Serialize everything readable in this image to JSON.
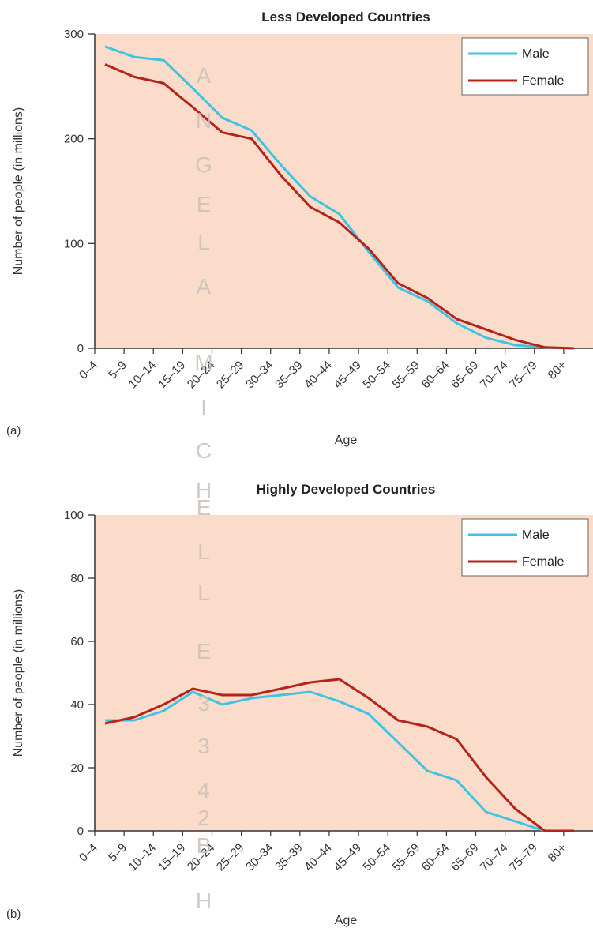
{
  "chart_data": [
    {
      "type": "line",
      "panel_label": "(a)",
      "title": "Less Developed Countries",
      "xlabel": "Age",
      "ylabel": "Number of people (in millions)",
      "ylim": [
        0,
        300
      ],
      "yticks": [
        "0",
        "100",
        "200",
        "300"
      ],
      "categories": [
        "0–4",
        "5–9",
        "10–14",
        "15–19",
        "20–24",
        "25–29",
        "30–34",
        "35–39",
        "40–44",
        "45–49",
        "50–54",
        "55–59",
        "60–64",
        "65–69",
        "70–74",
        "75–79",
        "80+"
      ],
      "series": [
        {
          "name": "Male",
          "color": "#3fc3e3",
          "values": [
            288,
            278,
            275,
            248,
            220,
            208,
            175,
            145,
            128,
            92,
            58,
            45,
            24,
            10,
            3,
            1,
            0
          ]
        },
        {
          "name": "Female",
          "color": "#b5231a",
          "values": [
            271,
            259,
            253,
            230,
            206,
            200,
            165,
            135,
            120,
            95,
            62,
            48,
            28,
            18,
            8,
            1,
            0
          ]
        }
      ],
      "legend_position": "top-right",
      "plot_background": "#fbdccb"
    },
    {
      "type": "line",
      "panel_label": "(b)",
      "title": "Highly Developed Countries",
      "xlabel": "Age",
      "ylabel": "Number of people (in millions)",
      "ylim": [
        0,
        100
      ],
      "yticks": [
        "0",
        "20",
        "40",
        "60",
        "80",
        "100"
      ],
      "categories": [
        "0–4",
        "5–9",
        "10–14",
        "15–19",
        "20–24",
        "25–29",
        "30–34",
        "35–39",
        "40–44",
        "45–49",
        "50–54",
        "55–59",
        "60–64",
        "65–69",
        "70–74",
        "75–79",
        "80+"
      ],
      "series": [
        {
          "name": "Male",
          "color": "#3fc3e3",
          "values": [
            35,
            35,
            38,
            44,
            40,
            42,
            43,
            44,
            41,
            37,
            28,
            19,
            16,
            6,
            3,
            0,
            0
          ]
        },
        {
          "name": "Female",
          "color": "#b5231a",
          "values": [
            34,
            36,
            40,
            45,
            43,
            43,
            45,
            47,
            48,
            42,
            35,
            33,
            29,
            17,
            7,
            0,
            0
          ]
        }
      ],
      "legend_position": "top-right",
      "plot_background": "#fbdccb"
    }
  ],
  "watermark": {
    "letters": [
      "A",
      "N",
      "G",
      "E",
      "L",
      "A",
      "M",
      "I",
      "C",
      "H",
      "E",
      "L",
      "L",
      "E",
      "3",
      "3",
      "4",
      "2",
      "B",
      "H"
    ],
    "color": "#c9bfb7"
  }
}
